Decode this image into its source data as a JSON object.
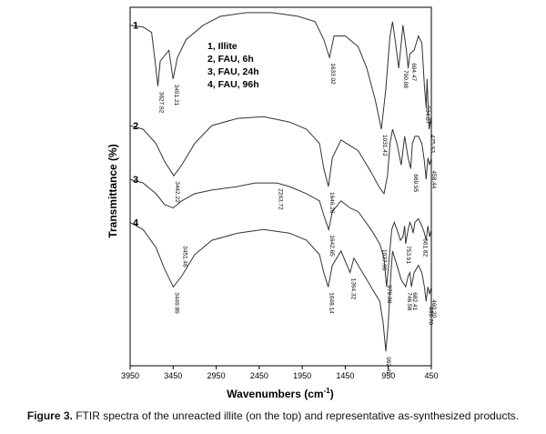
{
  "caption": {
    "label": "Figure 3.",
    "text": "FTIR spectra of the unreacted illite (on the top) and representative as-synthesized products."
  },
  "colors": {
    "line": "#333333",
    "frame": "#000000",
    "text": "#000000"
  },
  "chart_data": {
    "type": "line",
    "title": "",
    "xlabel": "Wavenumbers (cm",
    "xlabel_sup": "-1",
    "xlabel_end": ")",
    "ylabel": "Transmittance (%)",
    "xlim": [
      3950,
      450
    ],
    "x_reversed": true,
    "xticks": [
      {
        "value": 3950,
        "label": "3950"
      },
      {
        "value": 3450,
        "label": "3450"
      },
      {
        "value": 2950,
        "label": "2950"
      },
      {
        "value": 2450,
        "label": "2450"
      },
      {
        "value": 1950,
        "label": "1950"
      },
      {
        "value": 1450,
        "label": "1450"
      },
      {
        "value": 950,
        "label": "950"
      },
      {
        "value": 450,
        "label": "450"
      }
    ],
    "y_scale": "arbitrary, spectra offset vertically",
    "ylim": [
      0,
      100
    ],
    "grid": false,
    "legend": {
      "placement": "top-center",
      "entries": [
        "1, Illite",
        "2, FAU, 6h",
        "3, FAU, 24h",
        "4, FAU, 96h"
      ]
    },
    "series": [
      {
        "label": "1",
        "points": [
          [
            3950,
            95
          ],
          [
            3800,
            94.5
          ],
          [
            3700,
            93
          ],
          [
            3660,
            85
          ],
          [
            3628,
            78
          ],
          [
            3600,
            85
          ],
          [
            3500,
            88
          ],
          [
            3451,
            80
          ],
          [
            3400,
            86
          ],
          [
            3300,
            91
          ],
          [
            3100,
            95
          ],
          [
            2900,
            97.5
          ],
          [
            2600,
            98.5
          ],
          [
            2300,
            98.5
          ],
          [
            2000,
            97.5
          ],
          [
            1800,
            96
          ],
          [
            1700,
            91
          ],
          [
            1633,
            86
          ],
          [
            1580,
            92
          ],
          [
            1450,
            92
          ],
          [
            1300,
            89
          ],
          [
            1200,
            83
          ],
          [
            1100,
            74
          ],
          [
            1031,
            66
          ],
          [
            980,
            77
          ],
          [
            930,
            92
          ],
          [
            900,
            96
          ],
          [
            860,
            89
          ],
          [
            830,
            83
          ],
          [
            800,
            90
          ],
          [
            780,
            95
          ],
          [
            740,
            88
          ],
          [
            720,
            83
          ],
          [
            700,
            87
          ],
          [
            650,
            88
          ],
          [
            600,
            92
          ],
          [
            560,
            90
          ],
          [
            530,
            78
          ],
          [
            510,
            72
          ],
          [
            500,
            80
          ],
          [
            476,
            66
          ],
          [
            460,
            68
          ],
          [
            450,
            70
          ]
        ],
        "peak_labels": [
          {
            "x": 3628,
            "y": 78,
            "text": "3627.92"
          },
          {
            "x": 3451,
            "y": 80,
            "text": "3451.21"
          },
          {
            "x": 1633,
            "y": 86,
            "text": "1633.02"
          },
          {
            "x": 1031,
            "y": 66,
            "text": "1031.43"
          },
          {
            "x": 790,
            "y": 84,
            "text": "790.08"
          },
          {
            "x": 694,
            "y": 86,
            "text": "694.47"
          },
          {
            "x": 534,
            "y": 74,
            "text": "534.07"
          },
          {
            "x": 476,
            "y": 66,
            "text": "475.93"
          }
        ]
      },
      {
        "label": "2",
        "points": [
          [
            3950,
            67
          ],
          [
            3800,
            66
          ],
          [
            3650,
            62
          ],
          [
            3550,
            57
          ],
          [
            3442,
            53
          ],
          [
            3350,
            56
          ],
          [
            3200,
            62
          ],
          [
            3000,
            67
          ],
          [
            2700,
            69
          ],
          [
            2400,
            69.5
          ],
          [
            2100,
            68
          ],
          [
            1900,
            66
          ],
          [
            1750,
            62
          ],
          [
            1700,
            55
          ],
          [
            1646,
            50
          ],
          [
            1600,
            58
          ],
          [
            1500,
            63
          ],
          [
            1300,
            60
          ],
          [
            1150,
            54
          ],
          [
            1060,
            50
          ],
          [
            1000,
            48
          ],
          [
            960,
            53
          ],
          [
            930,
            62
          ],
          [
            900,
            66
          ],
          [
            850,
            62
          ],
          [
            800,
            56
          ],
          [
            780,
            60
          ],
          [
            760,
            64
          ],
          [
            720,
            58
          ],
          [
            690,
            55
          ],
          [
            670,
            62
          ],
          [
            640,
            64
          ],
          [
            600,
            64
          ],
          [
            560,
            62
          ],
          [
            530,
            57
          ],
          [
            510,
            52
          ],
          [
            490,
            58
          ],
          [
            470,
            56
          ],
          [
            450,
            58
          ]
        ],
        "peak_labels": [
          {
            "x": 3442,
            "y": 53,
            "text": "3442.22"
          },
          {
            "x": 1646,
            "y": 50,
            "text": "1646.26"
          },
          {
            "x": 670,
            "y": 55,
            "text": "669.95"
          },
          {
            "x": 459,
            "y": 56,
            "text": "458.44"
          }
        ]
      },
      {
        "label": "3",
        "points": [
          [
            3950,
            52
          ],
          [
            3800,
            51
          ],
          [
            3650,
            48
          ],
          [
            3550,
            45
          ],
          [
            3451,
            44
          ],
          [
            3350,
            46
          ],
          [
            3200,
            48
          ],
          [
            3000,
            49
          ],
          [
            2700,
            50
          ],
          [
            2500,
            51
          ],
          [
            2244,
            51
          ],
          [
            2100,
            50
          ],
          [
            1900,
            48
          ],
          [
            1750,
            46
          ],
          [
            1700,
            42
          ],
          [
            1643,
            38
          ],
          [
            1600,
            43
          ],
          [
            1500,
            46
          ],
          [
            1394,
            44
          ],
          [
            1300,
            43
          ],
          [
            1150,
            38
          ],
          [
            1050,
            34
          ],
          [
            1000,
            30
          ],
          [
            970,
            22
          ],
          [
            940,
            30
          ],
          [
            910,
            38
          ],
          [
            880,
            40
          ],
          [
            850,
            38
          ],
          [
            810,
            35
          ],
          [
            780,
            36
          ],
          [
            760,
            39
          ],
          [
            748,
            34
          ],
          [
            720,
            38
          ],
          [
            700,
            40
          ],
          [
            680,
            39
          ],
          [
            662,
            37
          ],
          [
            640,
            40
          ],
          [
            600,
            41
          ],
          [
            560,
            39
          ],
          [
            530,
            37
          ],
          [
            510,
            35
          ],
          [
            490,
            39
          ],
          [
            470,
            36
          ],
          [
            450,
            38
          ]
        ],
        "peak_labels": [
          {
            "x": 2244,
            "y": 51,
            "text": "2243.72"
          },
          {
            "x": 1643,
            "y": 38,
            "text": "1642.65"
          },
          {
            "x": 1038,
            "y": 34,
            "text": "1037.96"
          },
          {
            "x": 755,
            "y": 35,
            "text": "753.91"
          },
          {
            "x": 562,
            "y": 37,
            "text": "561.82"
          }
        ]
      },
      {
        "label": "4",
        "points": [
          [
            3950,
            40
          ],
          [
            3800,
            38
          ],
          [
            3650,
            33
          ],
          [
            3550,
            27
          ],
          [
            3449,
            22
          ],
          [
            3350,
            25
          ],
          [
            3200,
            31
          ],
          [
            3000,
            35
          ],
          [
            2700,
            37
          ],
          [
            2400,
            38
          ],
          [
            2100,
            37
          ],
          [
            1900,
            35
          ],
          [
            1750,
            31
          ],
          [
            1700,
            26
          ],
          [
            1648,
            22
          ],
          [
            1600,
            28
          ],
          [
            1500,
            32
          ],
          [
            1394,
            26
          ],
          [
            1350,
            30
          ],
          [
            1200,
            24
          ],
          [
            1100,
            20
          ],
          [
            1050,
            18
          ],
          [
            1010,
            12
          ],
          [
            979,
            4
          ],
          [
            950,
            12
          ],
          [
            920,
            26
          ],
          [
            900,
            32
          ],
          [
            850,
            28
          ],
          [
            800,
            24
          ],
          [
            748,
            22
          ],
          [
            720,
            25
          ],
          [
            700,
            26
          ],
          [
            682,
            22
          ],
          [
            650,
            26
          ],
          [
            600,
            28
          ],
          [
            560,
            26
          ],
          [
            530,
            22
          ],
          [
            510,
            18
          ],
          [
            490,
            22
          ],
          [
            470,
            20
          ],
          [
            450,
            22
          ]
        ],
        "peak_labels": [
          {
            "x": 3449,
            "y": 22,
            "text": "3449.89"
          },
          {
            "x": 3351,
            "y": 35,
            "text": "3451.46"
          },
          {
            "x": 1648,
            "y": 22,
            "text": "1648.14"
          },
          {
            "x": 1394,
            "y": 26,
            "text": "1394.32"
          },
          {
            "x": 979,
            "y": 24,
            "text": "979.30"
          },
          {
            "x": 990,
            "y": 4,
            "text": "992.42"
          },
          {
            "x": 748,
            "y": 22,
            "text": "746.58"
          },
          {
            "x": 682,
            "y": 22,
            "text": "682.41"
          },
          {
            "x": 500,
            "y": 18,
            "text": "499.70"
          },
          {
            "x": 460,
            "y": 20,
            "text": "460.20"
          }
        ]
      }
    ]
  }
}
